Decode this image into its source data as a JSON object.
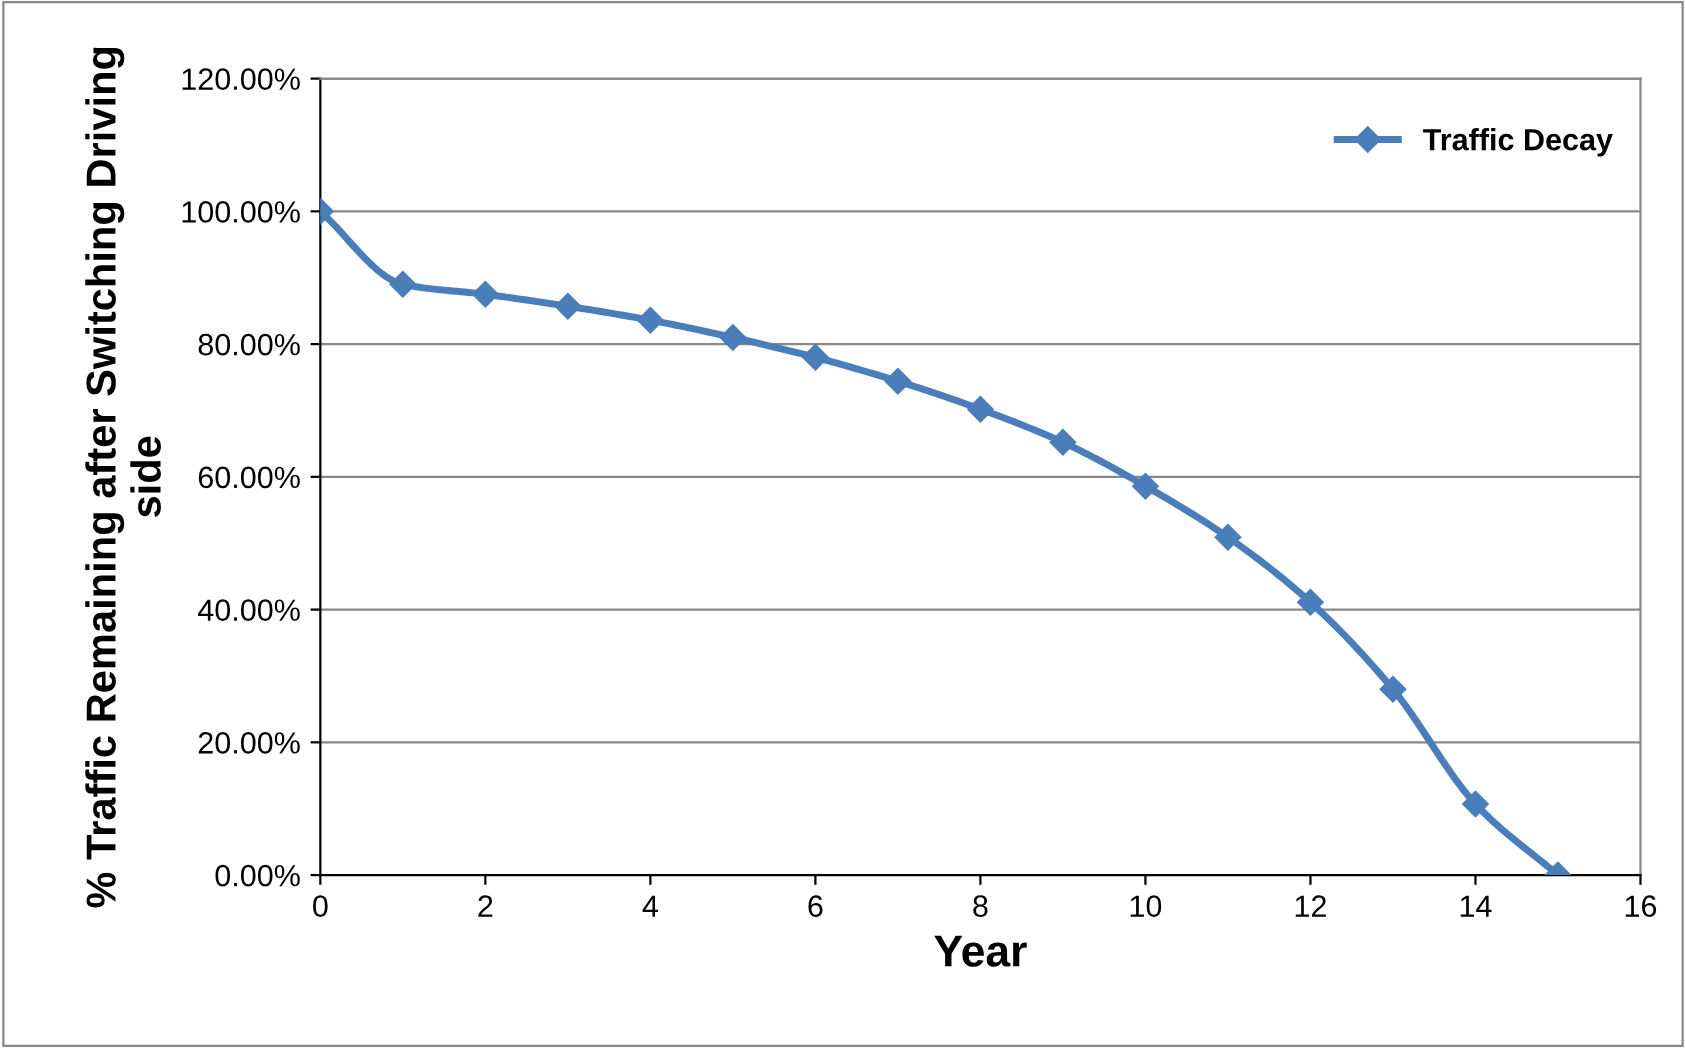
{
  "chart_data": {
    "type": "line",
    "xlabel": "Year",
    "ylabel": "% Traffic Remaining after Switching Driving side",
    "x": [
      0,
      1,
      2,
      3,
      4,
      5,
      6,
      7,
      8,
      9,
      10,
      11,
      12,
      13,
      14,
      15
    ],
    "series": [
      {
        "name": "Traffic Decay",
        "color": "#4a7ebb",
        "values": [
          100,
          89.0,
          87.5,
          85.7,
          83.6,
          81.0,
          78.0,
          74.4,
          70.2,
          65.2,
          58.6,
          50.9,
          41.1,
          28.0,
          10.7,
          0
        ]
      }
    ],
    "xlim": [
      0,
      16
    ],
    "xticks": [
      0,
      2,
      4,
      6,
      8,
      10,
      12,
      14,
      16
    ],
    "ylim": [
      0,
      120
    ],
    "yticks": [
      {
        "value": 0,
        "label": "0.00%"
      },
      {
        "value": 20,
        "label": "20.00%"
      },
      {
        "value": 40,
        "label": "40.00%"
      },
      {
        "value": 60,
        "label": "60.00%"
      },
      {
        "value": 80,
        "label": "80.00%"
      },
      {
        "value": 100,
        "label": "100.00%"
      },
      {
        "value": 120,
        "label": "120.00%"
      }
    ],
    "grid": "y",
    "legend": "right",
    "marker": "diamond",
    "line_style": "solid"
  }
}
